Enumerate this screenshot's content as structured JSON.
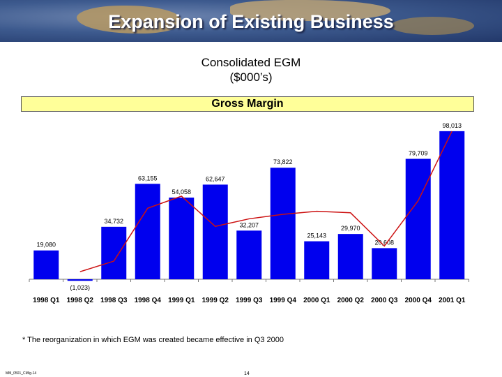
{
  "header": {
    "title": "Expansion of Existing Business"
  },
  "heading": {
    "line1": "Consolidated EGM",
    "line2": "($000’s)"
  },
  "chart_data": {
    "type": "bar",
    "title": "Gross Margin",
    "categories": [
      "1998 Q1",
      "1998 Q2",
      "1998 Q3",
      "1998 Q4",
      "1999 Q1",
      "1999 Q2",
      "1999 Q3",
      "1999 Q4",
      "2000 Q1",
      "2000 Q2",
      "2000 Q3",
      "2000 Q4",
      "2001 Q1"
    ],
    "series": [
      {
        "name": "Gross Margin (bars)",
        "type": "bar",
        "values": [
          19080,
          -1023,
          34732,
          63155,
          54058,
          62647,
          32207,
          73822,
          25143,
          29970,
          20608,
          79709,
          98013
        ]
      },
      {
        "name": "Gross Margin (line)",
        "type": "line",
        "values": [
          null,
          5000,
          12000,
          47000,
          55000,
          35000,
          40000,
          43000,
          45000,
          44000,
          22000,
          52000,
          98013
        ]
      }
    ],
    "data_labels": [
      "19,080",
      "(1,023)",
      "34,732",
      "63,155",
      "54,058",
      "62,647",
      "32,207",
      "73,822",
      "25,143",
      "29,970",
      "20,608",
      "79,709",
      "98,013"
    ],
    "ylim": [
      -5000,
      100000
    ],
    "grid": false,
    "colors": {
      "bar": "#0000ee",
      "line": "#cc1111",
      "band": "#ffff99"
    }
  },
  "footnote": "*   The reorganization in which EGM was created became effective in Q3 2000",
  "footer": {
    "code": "MM_0501_CMIg-14",
    "page": "14"
  }
}
